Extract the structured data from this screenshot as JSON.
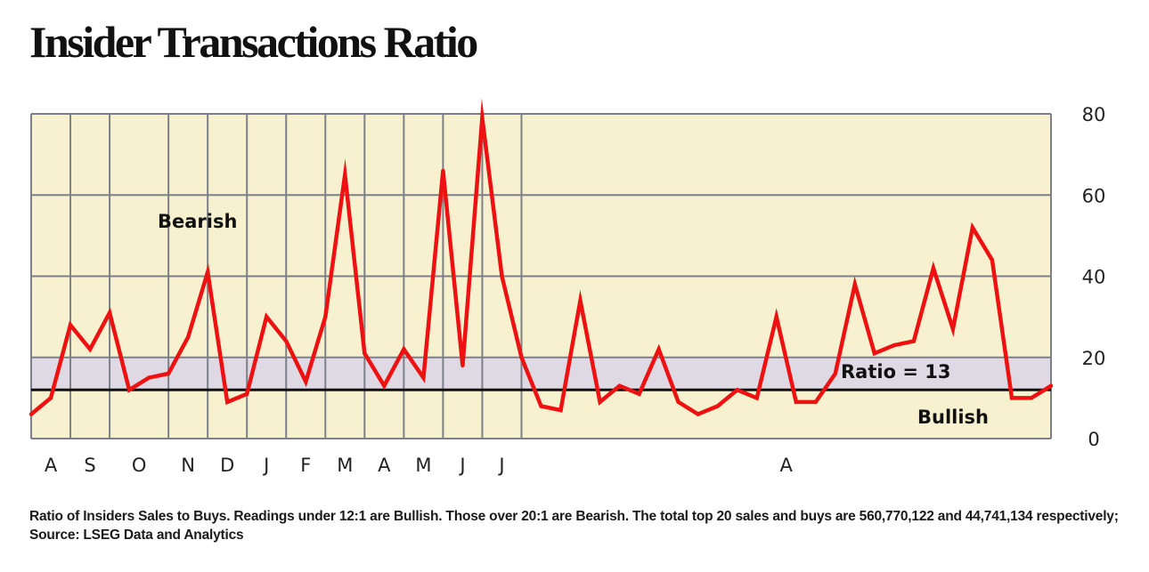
{
  "title": "Insider Transactions Ratio",
  "footnote": "Ratio of Insiders Sales to Buys. Readings under 12:1 are Bullish. Those over 20:1 are Bearish. The total top 20 sales and buys are 560,770,122 and 44,741,134 respectively; Source: LSEG Data and Analytics",
  "colors": {
    "plot_background": "#f7f1cf",
    "neutral_band": "#dfd9e4",
    "line": "#ee1111",
    "grid": "#7d8088",
    "ratio_line": "#111111"
  },
  "chart_data": {
    "type": "line",
    "title": "Insider Transactions Ratio",
    "ylim": [
      0,
      80
    ],
    "yticks": [
      0,
      20,
      40,
      60,
      80
    ],
    "y_axis_side": "right",
    "grid": true,
    "x_month_labels": [
      "A",
      "S",
      "O",
      "N",
      "D",
      "J",
      "F",
      "M",
      "A",
      "M",
      "J",
      "J",
      "A"
    ],
    "x_month_spans": [
      2,
      2,
      3,
      2,
      2,
      2,
      2,
      2,
      2,
      2,
      2,
      2,
      1
    ],
    "reference_line": {
      "value": 12,
      "label": "Ratio = 13"
    },
    "band": {
      "from": 12,
      "to": 20
    },
    "annotations": {
      "bearish": "Bearish",
      "bullish": "Bullish"
    },
    "series": [
      {
        "values": [
          6,
          10,
          28,
          22,
          31,
          12,
          15,
          16,
          25,
          41,
          9,
          11,
          30,
          24,
          14,
          30,
          65,
          21,
          13,
          22,
          15,
          66,
          18,
          79,
          40,
          20,
          8,
          7,
          34,
          9,
          13,
          11,
          22,
          9,
          6,
          8,
          12,
          10,
          30,
          9,
          9,
          16,
          38,
          21,
          23,
          24,
          42,
          27,
          52,
          44,
          10,
          10,
          13
        ]
      }
    ]
  }
}
